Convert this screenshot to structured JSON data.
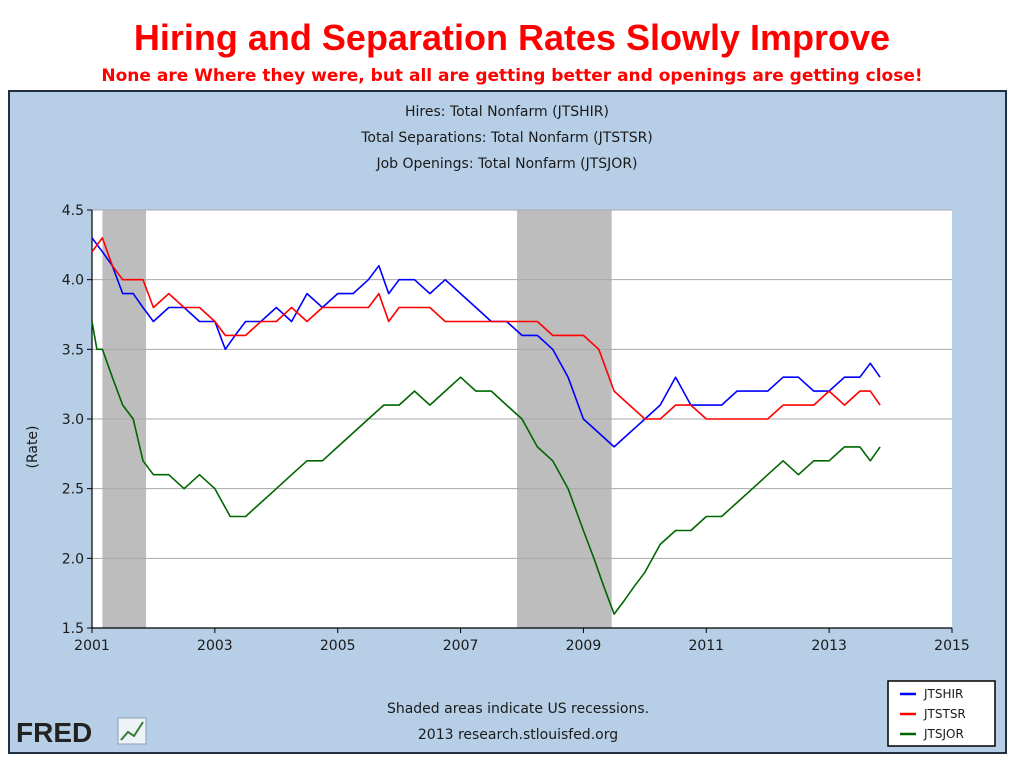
{
  "slide": {
    "title": "Hiring and Separation Rates Slowly Improve",
    "subtitle": "None are Where they were, but all are getting better and openings are getting close!"
  },
  "colors": {
    "title": "#ff0000",
    "frame_bg": "#b7cfe6",
    "plot_bg": "#ffffff",
    "recession": "#bdbdbd",
    "JTSHIR": "#0000ff",
    "JTSTSR": "#ff0000",
    "JTSJOR": "#006600"
  },
  "footer": {
    "note": "Shaded areas indicate US recessions.",
    "source": "2013 research.stlouisfed.org",
    "logo_text": "FRED"
  },
  "chart_data": {
    "type": "line",
    "title_lines": [
      "Hires: Total Nonfarm (JTSHIR)",
      "Total Separations: Total Nonfarm (JTSTSR)",
      "Job Openings: Total Nonfarm (JTSJOR)"
    ],
    "xlabel": "",
    "ylabel": "(Rate)",
    "xlim": [
      2001,
      2015
    ],
    "ylim": [
      1.5,
      4.5
    ],
    "xticks": [
      "2001",
      "2003",
      "2005",
      "2007",
      "2009",
      "2011",
      "2013",
      "2015"
    ],
    "yticks": [
      "4.5",
      "4.0",
      "3.5",
      "3.0",
      "2.5",
      "2.0",
      "1.5"
    ],
    "grid": true,
    "legend_position": "bottom-right",
    "recessions": [
      [
        2001.17,
        2001.88
      ],
      [
        2007.92,
        2009.46
      ]
    ],
    "series": [
      {
        "name": "JTSHIR",
        "x": [
          2001.0,
          2001.17,
          2001.33,
          2001.5,
          2001.67,
          2001.83,
          2002.0,
          2002.25,
          2002.5,
          2002.75,
          2003.0,
          2003.17,
          2003.33,
          2003.5,
          2003.75,
          2004.0,
          2004.25,
          2004.5,
          2004.75,
          2005.0,
          2005.25,
          2005.5,
          2005.67,
          2005.83,
          2006.0,
          2006.25,
          2006.5,
          2006.75,
          2007.0,
          2007.25,
          2007.5,
          2007.75,
          2008.0,
          2008.25,
          2008.5,
          2008.75,
          2009.0,
          2009.25,
          2009.5,
          2009.75,
          2010.0,
          2010.25,
          2010.5,
          2010.75,
          2011.0,
          2011.25,
          2011.5,
          2011.75,
          2012.0,
          2012.25,
          2012.5,
          2012.75,
          2013.0,
          2013.25,
          2013.5,
          2013.67,
          2013.83
        ],
        "values": [
          4.3,
          4.2,
          4.1,
          3.9,
          3.9,
          3.8,
          3.7,
          3.8,
          3.8,
          3.7,
          3.7,
          3.5,
          3.6,
          3.7,
          3.7,
          3.8,
          3.7,
          3.9,
          3.8,
          3.9,
          3.9,
          4.0,
          4.1,
          3.9,
          4.0,
          4.0,
          3.9,
          4.0,
          3.9,
          3.8,
          3.7,
          3.7,
          3.6,
          3.6,
          3.5,
          3.3,
          3.0,
          2.9,
          2.8,
          2.9,
          3.0,
          3.1,
          3.3,
          3.1,
          3.1,
          3.1,
          3.2,
          3.2,
          3.2,
          3.3,
          3.3,
          3.2,
          3.2,
          3.3,
          3.3,
          3.4,
          3.3
        ]
      },
      {
        "name": "JTSTSR",
        "x": [
          2001.0,
          2001.17,
          2001.33,
          2001.5,
          2001.67,
          2001.83,
          2002.0,
          2002.25,
          2002.5,
          2002.75,
          2003.0,
          2003.17,
          2003.33,
          2003.5,
          2003.75,
          2004.0,
          2004.25,
          2004.5,
          2004.75,
          2005.0,
          2005.25,
          2005.5,
          2005.67,
          2005.83,
          2006.0,
          2006.25,
          2006.5,
          2006.75,
          2007.0,
          2007.25,
          2007.5,
          2007.75,
          2008.0,
          2008.25,
          2008.5,
          2008.75,
          2009.0,
          2009.25,
          2009.5,
          2009.75,
          2010.0,
          2010.25,
          2010.5,
          2010.75,
          2011.0,
          2011.25,
          2011.5,
          2011.75,
          2012.0,
          2012.25,
          2012.5,
          2012.75,
          2013.0,
          2013.25,
          2013.5,
          2013.67,
          2013.83
        ],
        "values": [
          4.2,
          4.3,
          4.1,
          4.0,
          4.0,
          4.0,
          3.8,
          3.9,
          3.8,
          3.8,
          3.7,
          3.6,
          3.6,
          3.6,
          3.7,
          3.7,
          3.8,
          3.7,
          3.8,
          3.8,
          3.8,
          3.8,
          3.9,
          3.7,
          3.8,
          3.8,
          3.8,
          3.7,
          3.7,
          3.7,
          3.7,
          3.7,
          3.7,
          3.7,
          3.6,
          3.6,
          3.6,
          3.5,
          3.2,
          3.1,
          3.0,
          3.0,
          3.1,
          3.1,
          3.0,
          3.0,
          3.0,
          3.0,
          3.0,
          3.1,
          3.1,
          3.1,
          3.2,
          3.1,
          3.2,
          3.2,
          3.1
        ]
      },
      {
        "name": "JTSJOR",
        "x": [
          2001.0,
          2001.08,
          2001.17,
          2001.33,
          2001.5,
          2001.67,
          2001.83,
          2002.0,
          2002.25,
          2002.5,
          2002.75,
          2003.0,
          2003.25,
          2003.5,
          2003.75,
          2004.0,
          2004.25,
          2004.5,
          2004.75,
          2005.0,
          2005.25,
          2005.5,
          2005.75,
          2006.0,
          2006.25,
          2006.5,
          2006.75,
          2007.0,
          2007.25,
          2007.5,
          2007.75,
          2008.0,
          2008.25,
          2008.5,
          2008.75,
          2009.0,
          2009.17,
          2009.33,
          2009.5,
          2009.67,
          2009.83,
          2010.0,
          2010.25,
          2010.5,
          2010.75,
          2011.0,
          2011.25,
          2011.5,
          2011.75,
          2012.0,
          2012.25,
          2012.5,
          2012.75,
          2013.0,
          2013.25,
          2013.5,
          2013.67,
          2013.83
        ],
        "values": [
          3.7,
          3.5,
          3.5,
          3.3,
          3.1,
          3.0,
          2.7,
          2.6,
          2.6,
          2.5,
          2.6,
          2.5,
          2.3,
          2.3,
          2.4,
          2.5,
          2.6,
          2.7,
          2.7,
          2.8,
          2.9,
          3.0,
          3.1,
          3.1,
          3.2,
          3.1,
          3.2,
          3.3,
          3.2,
          3.2,
          3.1,
          3.0,
          2.8,
          2.7,
          2.5,
          2.2,
          2.0,
          1.8,
          1.6,
          1.7,
          1.8,
          1.9,
          2.1,
          2.2,
          2.2,
          2.3,
          2.3,
          2.4,
          2.5,
          2.6,
          2.7,
          2.6,
          2.7,
          2.7,
          2.8,
          2.8,
          2.7,
          2.8
        ]
      }
    ]
  }
}
